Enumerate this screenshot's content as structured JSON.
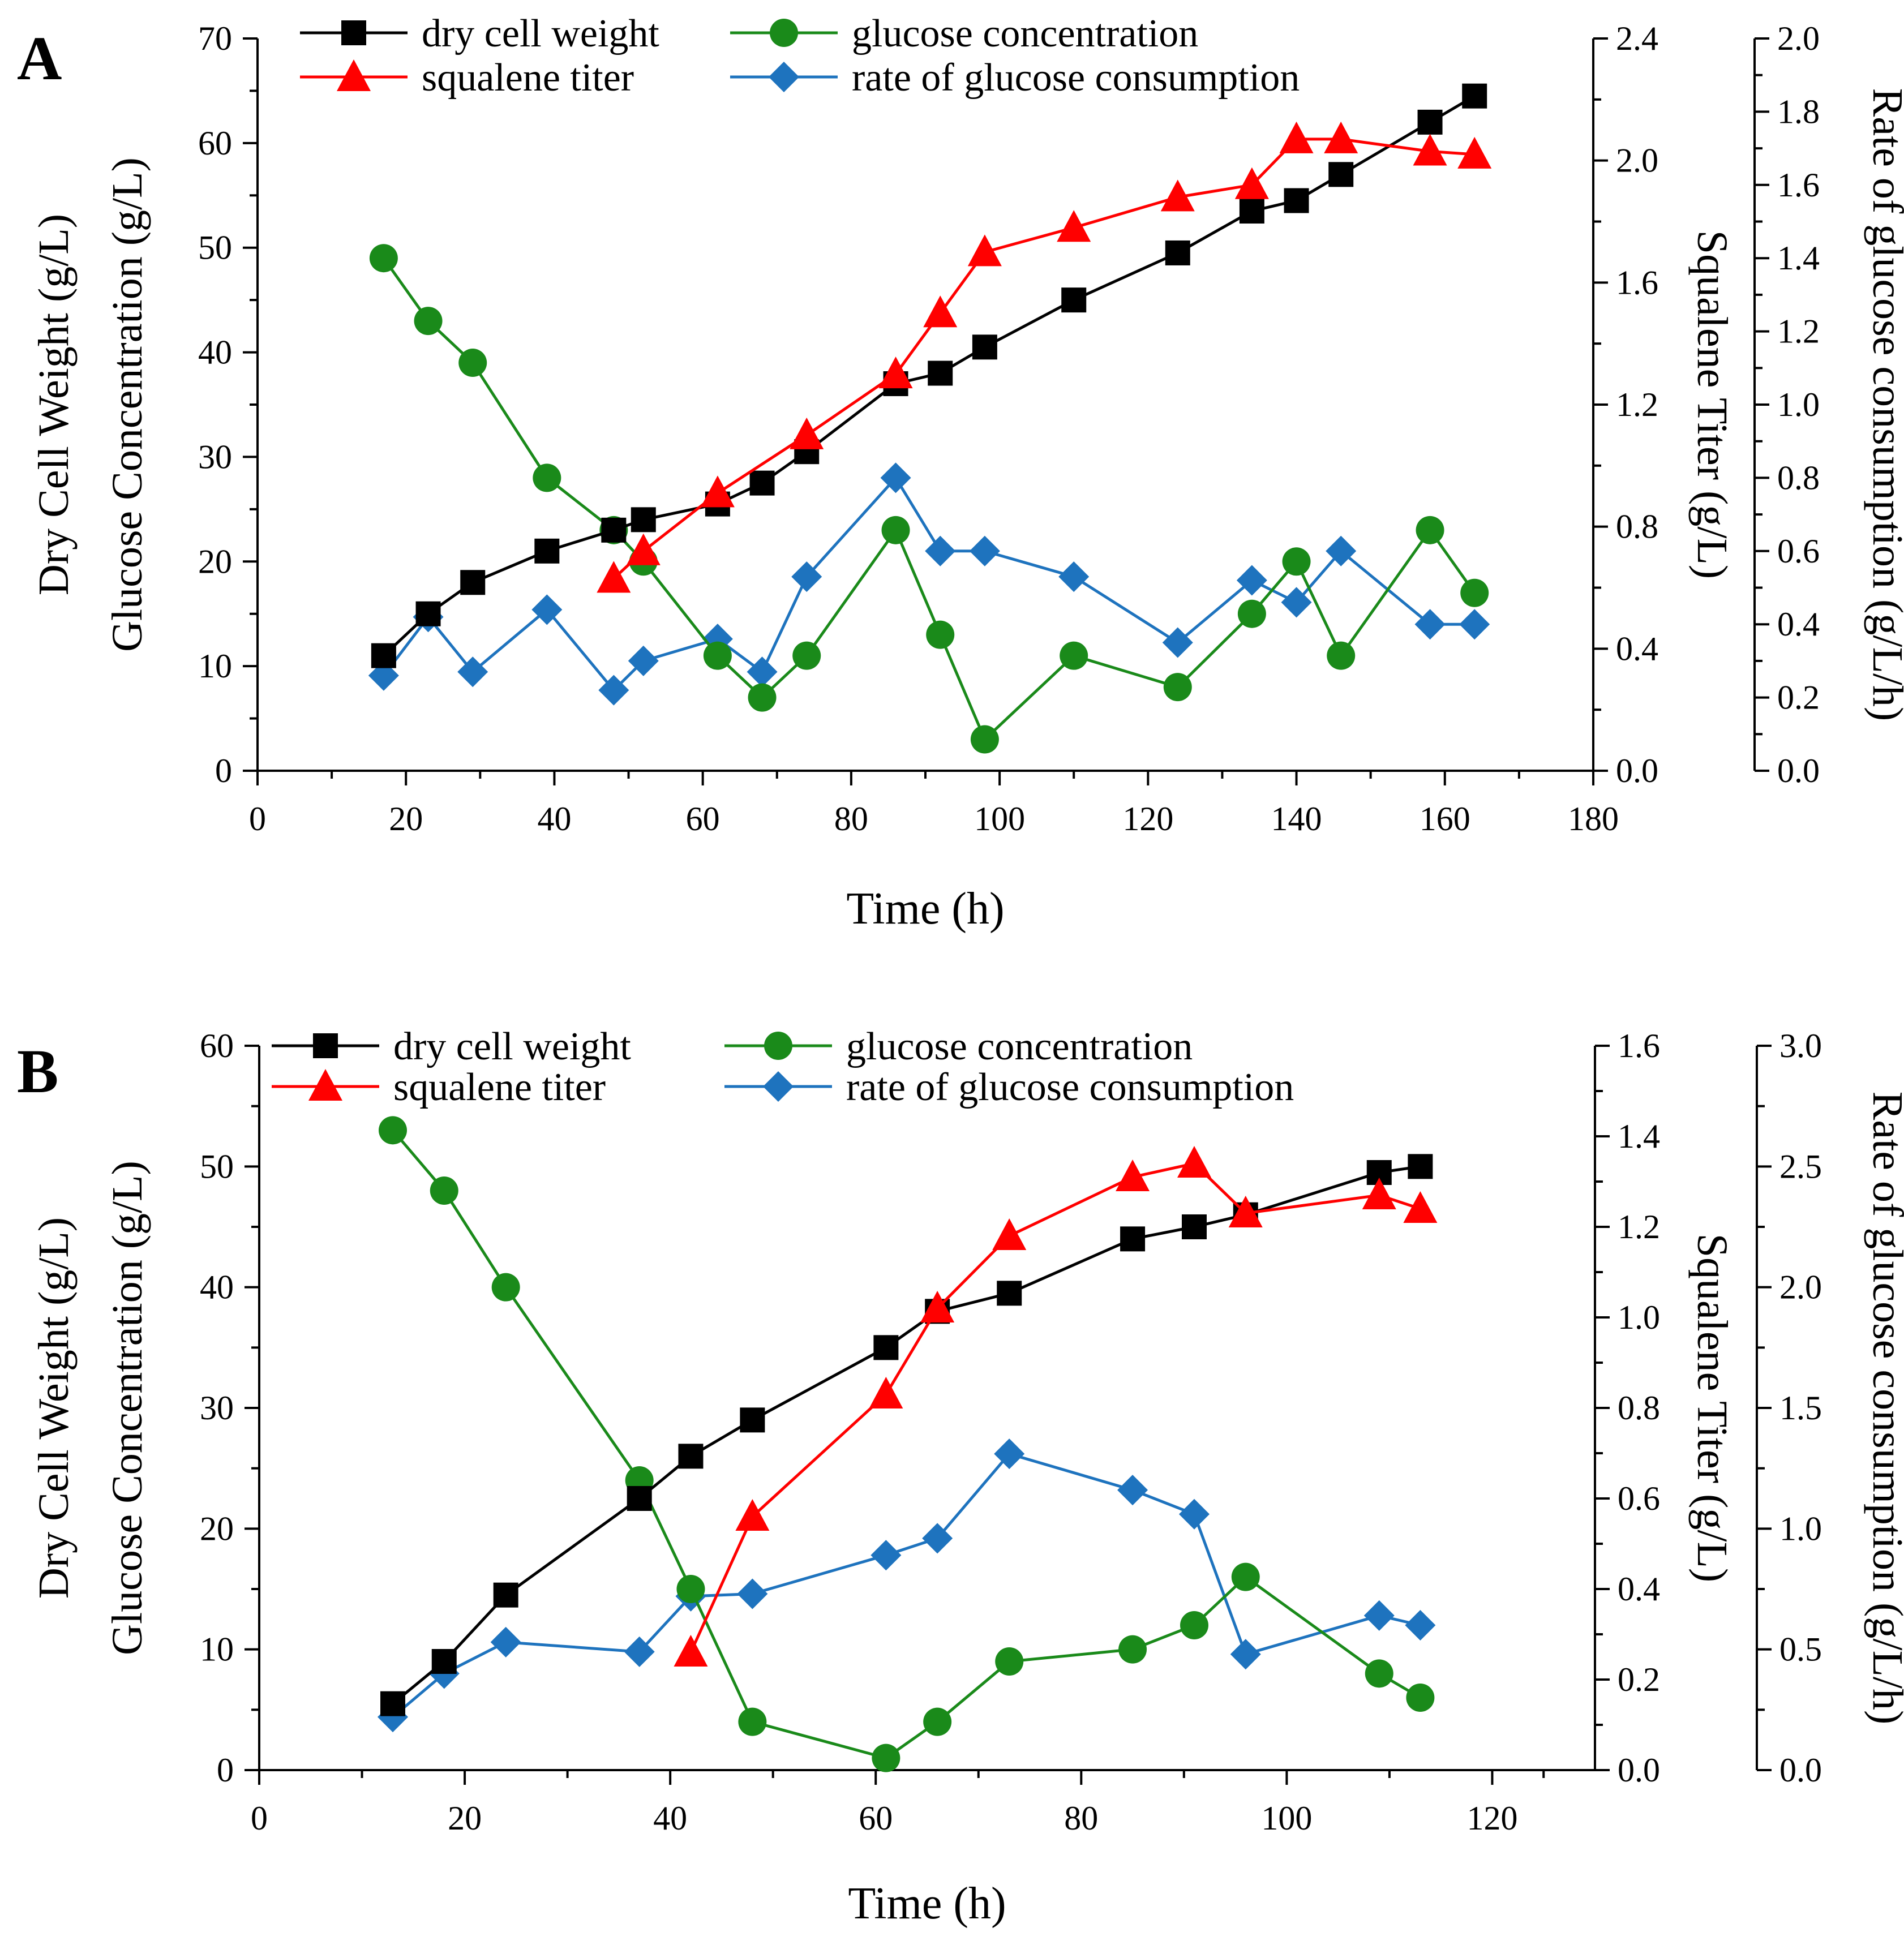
{
  "chart_data": [
    {
      "type": "line",
      "panel_label": "A",
      "xlabel": "Time (h)",
      "ylabel_left": [
        "Dry Cell Weight (g/L)",
        "Glucose Concentration (g/L)"
      ],
      "ylabel_right1": "Squalene Titer (g/L)",
      "ylabel_right2": "Rate of glucose consumption (g/L/h)",
      "xlim": [
        0,
        180
      ],
      "x_ticks": [
        "0",
        "20",
        "40",
        "60",
        "80",
        "100",
        "120",
        "140",
        "160",
        "180"
      ],
      "ylim_left": [
        0,
        70
      ],
      "y_left_ticks": [
        "0",
        "10",
        "20",
        "30",
        "40",
        "50",
        "60",
        "70"
      ],
      "ylim_right1": [
        0,
        2.4
      ],
      "y_right1_ticks": [
        "0.0",
        "0.4",
        "0.8",
        "1.2",
        "1.6",
        "2.0",
        "2.4"
      ],
      "ylim_right2": [
        0,
        2.0
      ],
      "y_right2_ticks": [
        "0.0",
        "0.2",
        "0.4",
        "0.6",
        "0.8",
        "1.0",
        "1.2",
        "1.4",
        "1.6",
        "1.8",
        "2.0"
      ],
      "series": [
        {
          "name": "dry cell weight",
          "axis": "left",
          "color": "#000000",
          "marker": "square",
          "x": [
            17,
            23,
            29,
            39,
            48,
            52,
            62,
            68,
            74,
            86,
            92,
            98,
            110,
            124,
            134,
            140,
            146,
            158,
            164
          ],
          "y": [
            11,
            15,
            18,
            21,
            23,
            24,
            25.5,
            27.5,
            30.5,
            37,
            38,
            40.5,
            45,
            49.5,
            53.5,
            54.5,
            57,
            62,
            64.5
          ]
        },
        {
          "name": "squalene titer",
          "axis": "right1",
          "color": "#ff0000",
          "marker": "triangle",
          "x": [
            48,
            52,
            62,
            74,
            86,
            92,
            98,
            110,
            124,
            134,
            140,
            146,
            158,
            164
          ],
          "y": [
            0.63,
            0.72,
            0.91,
            1.1,
            1.3,
            1.5,
            1.7,
            1.78,
            1.88,
            1.92,
            2.07,
            2.07,
            2.03,
            2.02
          ]
        },
        {
          "name": "glucose concentration",
          "axis": "left",
          "color": "#1a8a1a",
          "marker": "circle",
          "x": [
            17,
            23,
            29,
            39,
            48,
            52,
            62,
            68,
            74,
            86,
            92,
            98,
            110,
            124,
            134,
            140,
            146,
            158,
            164
          ],
          "y": [
            49,
            43,
            39,
            28,
            23,
            20,
            11,
            7,
            11,
            23,
            13,
            3,
            11,
            8,
            15,
            20,
            11,
            23,
            17
          ]
        },
        {
          "name": "rate of glucose consumption",
          "axis": "right2",
          "color": "#1e73be",
          "marker": "diamond",
          "x": [
            17,
            23,
            29,
            39,
            48,
            52,
            62,
            68,
            74,
            86,
            92,
            98,
            110,
            124,
            134,
            140,
            146,
            158,
            164
          ],
          "y": [
            0.26,
            0.42,
            0.27,
            0.44,
            0.22,
            0.3,
            0.36,
            0.27,
            0.53,
            0.8,
            0.6,
            0.6,
            0.53,
            0.35,
            0.52,
            0.46,
            0.6,
            0.4,
            0.4
          ]
        }
      ]
    },
    {
      "type": "line",
      "panel_label": "B",
      "xlabel": "Time (h)",
      "ylabel_left": [
        "Dry Cell Weight (g/L)",
        "Glucose Concentration (g/L)"
      ],
      "ylabel_right1": "Squalene Titer (g/L)",
      "ylabel_right2": "Rate of glucose consumption (g/L/h)",
      "xlim": [
        0,
        130
      ],
      "x_ticks": [
        "0",
        "20",
        "40",
        "60",
        "80",
        "100",
        "120"
      ],
      "ylim_left": [
        0,
        60
      ],
      "y_left_ticks": [
        "0",
        "10",
        "20",
        "30",
        "40",
        "50",
        "60"
      ],
      "ylim_right1": [
        0,
        1.6
      ],
      "y_right1_ticks": [
        "0.0",
        "0.2",
        "0.4",
        "0.6",
        "0.8",
        "1.0",
        "1.2",
        "1.4",
        "1.6"
      ],
      "ylim_right2": [
        0,
        3.0
      ],
      "y_right2_ticks": [
        "0.0",
        "0.5",
        "1.0",
        "1.5",
        "2.0",
        "2.5",
        "3.0"
      ],
      "series": [
        {
          "name": "dry cell weight",
          "axis": "left",
          "color": "#000000",
          "marker": "square",
          "x": [
            13,
            18,
            24,
            37,
            42,
            48,
            61,
            66,
            73,
            85,
            91,
            96,
            109,
            113
          ],
          "y": [
            5.5,
            9,
            14.5,
            22.5,
            26,
            29,
            35,
            38,
            39.5,
            44,
            45,
            46,
            49.5,
            50
          ]
        },
        {
          "name": "squalene titer",
          "axis": "right1",
          "color": "#ff0000",
          "marker": "triangle",
          "x": [
            42,
            48,
            61,
            66,
            73,
            85,
            91,
            96,
            109,
            113
          ],
          "y": [
            0.26,
            0.56,
            0.83,
            1.02,
            1.18,
            1.31,
            1.34,
            1.23,
            1.27,
            1.24
          ]
        },
        {
          "name": "glucose concentration",
          "axis": "left",
          "color": "#1a8a1a",
          "marker": "circle",
          "x": [
            13,
            18,
            24,
            37,
            42,
            48,
            61,
            66,
            73,
            85,
            91,
            96,
            109,
            113
          ],
          "y": [
            53,
            48,
            40,
            24,
            15,
            4,
            1,
            4,
            9,
            10,
            12,
            16,
            8,
            6
          ]
        },
        {
          "name": "rate of glucose consumption",
          "axis": "right2",
          "color": "#1e73be",
          "marker": "diamond",
          "x": [
            13,
            18,
            24,
            37,
            42,
            48,
            61,
            66,
            73,
            85,
            91,
            96,
            109,
            113
          ],
          "y": [
            0.22,
            0.4,
            0.53,
            0.49,
            0.72,
            0.73,
            0.89,
            0.96,
            1.31,
            1.16,
            1.06,
            0.48,
            0.64,
            0.6
          ]
        }
      ]
    }
  ]
}
